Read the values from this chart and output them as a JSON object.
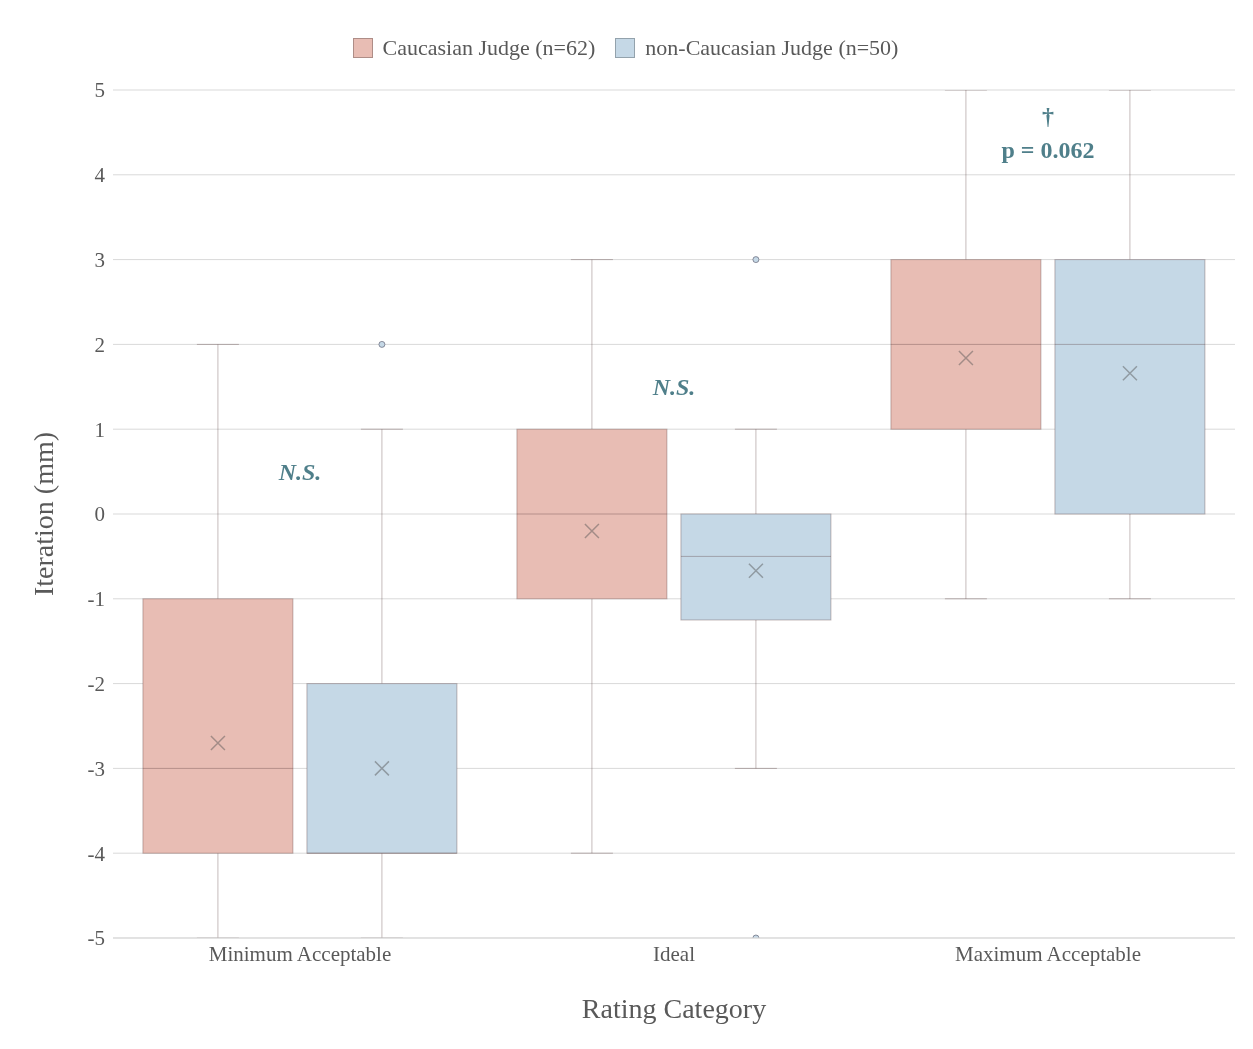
{
  "chart_data": {
    "type": "box",
    "xlabel": "Rating Category",
    "ylabel": "Iteration (mm)",
    "categories": [
      "Minimum Acceptable",
      "Ideal",
      "Maximum Acceptable"
    ],
    "ylim": [
      -5,
      5
    ],
    "yticks": [
      -5,
      -4,
      -3,
      -2,
      -1,
      0,
      1,
      2,
      3,
      4,
      5
    ],
    "grid": "y",
    "legend": "top",
    "series": [
      {
        "name": "Caucasian Judge (n=62)",
        "color": "#e8bdb4",
        "boxes": [
          {
            "low": -5,
            "q1": -4,
            "median": -3,
            "q3": -1,
            "high": 2,
            "mean": -2.7
          },
          {
            "low": -4,
            "q1": -1,
            "median": 0,
            "q3": 1,
            "high": 3,
            "mean": -0.2
          },
          {
            "low": -1,
            "q1": 1,
            "median": 2,
            "q3": 3,
            "high": 5,
            "mean": 1.84
          }
        ]
      },
      {
        "name": "non-Caucasian Judge (n=50)",
        "color": "#c5d8e6",
        "boxes": [
          {
            "low": -5,
            "q1": -4,
            "median": -4,
            "q3": -2,
            "high": 1,
            "mean": -3.0,
            "outliers": [
              2
            ]
          },
          {
            "low": -3,
            "q1": -1.25,
            "median": -0.5,
            "q3": 0,
            "high": 1,
            "mean": -0.67,
            "outliers": [
              3,
              -5
            ]
          },
          {
            "low": -1,
            "q1": 0,
            "median": 2,
            "q3": 3,
            "high": 5,
            "mean": 1.66
          }
        ]
      }
    ],
    "annotations": [
      "N.S.",
      "N.S.",
      "†",
      "p = 0.062"
    ]
  }
}
